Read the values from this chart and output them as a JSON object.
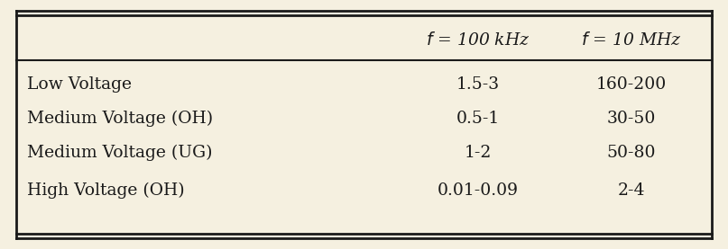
{
  "background_color": "#f5f0e0",
  "border_color": "#1a1a1a",
  "col_headers": [
    "$f$ = 100 kHz",
    "$f$ = 10 MHz"
  ],
  "row_labels": [
    "Low Voltage",
    "Medium Voltage (OH)",
    "Medium Voltage (UG)",
    "High Voltage (OH)"
  ],
  "col1_values": [
    "1.5-3",
    "0.5-1",
    "1-2",
    "0.01-0.09"
  ],
  "col2_values": [
    "160-200",
    "30-50",
    "50-80",
    "2-4"
  ],
  "header_fontsize": 13.5,
  "body_fontsize": 13.5,
  "text_color": "#1a1a1a"
}
